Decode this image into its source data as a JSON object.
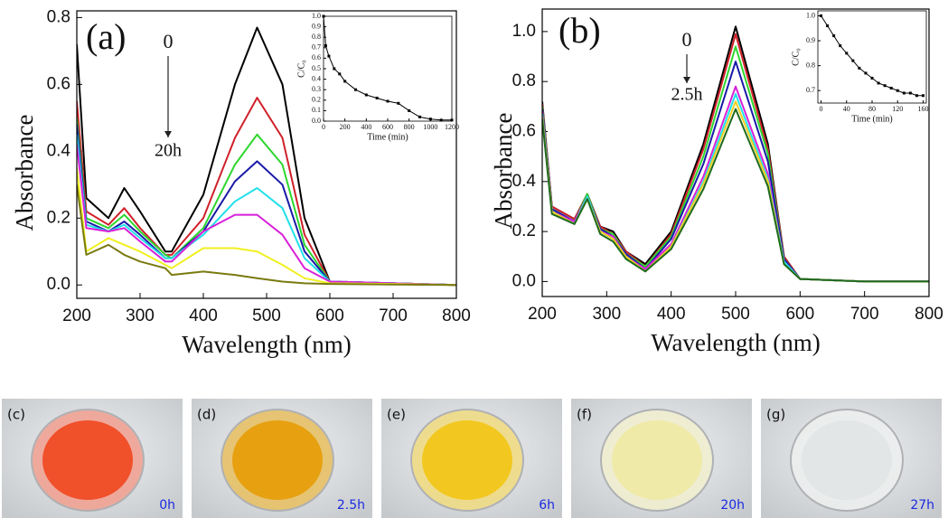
{
  "chart_data": [
    {
      "type": "line",
      "xlabel": "Wavelength (nm)",
      "ylabel": "Absorbance",
      "annotations": [
        "(a)",
        "0",
        "20h"
      ],
      "x": [
        200,
        215,
        250,
        275,
        300,
        340,
        350,
        400,
        450,
        485,
        525,
        560,
        600,
        700,
        800
      ],
      "xlim": [
        200,
        800
      ],
      "xticks": [
        200,
        300,
        400,
        500,
        600,
        700,
        800
      ],
      "ylim": [
        -0.04,
        0.82
      ],
      "yticks": [
        {
          "value": 0,
          "label": "0.0"
        },
        0.2,
        0.4,
        0.6,
        0.8
      ],
      "series": [
        {
          "color": "#000000",
          "values": [
            0.72,
            0.26,
            0.2,
            0.29,
            0.22,
            0.1,
            0.1,
            0.27,
            0.6,
            0.77,
            0.6,
            0.2,
            0.01,
            0.005,
            0
          ]
        },
        {
          "color": "#d0202a",
          "values": [
            0.55,
            0.22,
            0.18,
            0.23,
            0.17,
            0.09,
            0.09,
            0.2,
            0.44,
            0.56,
            0.44,
            0.15,
            0.01,
            0.005,
            0
          ]
        },
        {
          "color": "#2ed62e",
          "values": [
            0.5,
            0.2,
            0.17,
            0.21,
            0.16,
            0.09,
            0.08,
            0.17,
            0.36,
            0.45,
            0.36,
            0.12,
            0.01,
            0.005,
            0
          ]
        },
        {
          "color": "#1a1aa8",
          "values": [
            0.48,
            0.19,
            0.16,
            0.19,
            0.15,
            0.08,
            0.08,
            0.16,
            0.31,
            0.37,
            0.3,
            0.1,
            0.01,
            0.005,
            0
          ]
        },
        {
          "color": "#22e0e8",
          "values": [
            0.45,
            0.18,
            0.16,
            0.18,
            0.14,
            0.08,
            0.08,
            0.15,
            0.25,
            0.29,
            0.23,
            0.08,
            0.01,
            0.005,
            0
          ]
        },
        {
          "color": "#d820d8",
          "values": [
            0.42,
            0.17,
            0.16,
            0.17,
            0.13,
            0.07,
            0.07,
            0.16,
            0.21,
            0.21,
            0.15,
            0.05,
            0.01,
            0.005,
            0
          ]
        },
        {
          "color": "#f0f020",
          "values": [
            0.35,
            0.1,
            0.14,
            0.12,
            0.1,
            0.06,
            0.05,
            0.11,
            0.11,
            0.1,
            0.06,
            0.02,
            0.005,
            0.003,
            0
          ]
        },
        {
          "color": "#7a7a10",
          "values": [
            0.3,
            0.09,
            0.12,
            0.09,
            0.07,
            0.05,
            0.03,
            0.04,
            0.03,
            0.02,
            0.01,
            0.005,
            0.003,
            0.001,
            0
          ]
        }
      ]
    },
    {
      "type": "line",
      "markers": true,
      "xlabel": "Time (min)",
      "ylabel": "C/C₀",
      "x": [
        0,
        20,
        50,
        100,
        150,
        200,
        300,
        400,
        500,
        600,
        700,
        800,
        900,
        1000,
        1100,
        1200
      ],
      "xlim": [
        0,
        1200
      ],
      "xticks": [
        0,
        200,
        400,
        600,
        800,
        1000,
        1200
      ],
      "ylim": [
        0,
        1.0
      ],
      "yticks": [
        {
          "value": 0,
          "label": "0.0"
        },
        0.1,
        0.2,
        0.3,
        0.4,
        0.5,
        0.6,
        0.7,
        0.8,
        0.9,
        {
          "value": 1,
          "label": "1.0"
        }
      ],
      "series": [
        {
          "color": "#000000",
          "values": [
            1.0,
            0.72,
            0.62,
            0.5,
            0.45,
            0.38,
            0.3,
            0.25,
            0.22,
            0.19,
            0.17,
            0.1,
            0.04,
            0.02,
            0.01,
            0.01
          ]
        }
      ]
    },
    {
      "type": "line",
      "xlabel": "Wavelength (nm)",
      "ylabel": "Absorbance",
      "annotations": [
        "(b)",
        "0",
        "2.5h"
      ],
      "x": [
        200,
        215,
        250,
        270,
        290,
        310,
        330,
        360,
        400,
        450,
        500,
        550,
        575,
        600,
        700,
        800
      ],
      "xlim": [
        200,
        800
      ],
      "xticks": [
        200,
        300,
        400,
        500,
        600,
        700,
        800
      ],
      "ylim": [
        -0.06,
        1.09
      ],
      "yticks": [
        {
          "value": 0,
          "label": "0.0"
        },
        0.2,
        0.4,
        0.6,
        0.8,
        {
          "value": 1,
          "label": "1.0"
        }
      ],
      "series": [
        {
          "color": "#000000",
          "values": [
            0.72,
            0.3,
            0.25,
            0.35,
            0.22,
            0.2,
            0.12,
            0.07,
            0.2,
            0.55,
            1.02,
            0.55,
            0.1,
            0.01,
            0,
            0
          ]
        },
        {
          "color": "#d0202a",
          "values": [
            0.71,
            0.3,
            0.25,
            0.35,
            0.22,
            0.19,
            0.12,
            0.06,
            0.19,
            0.53,
            0.99,
            0.53,
            0.1,
            0.01,
            0,
            0
          ]
        },
        {
          "color": "#2ed62e",
          "values": [
            0.7,
            0.29,
            0.24,
            0.35,
            0.21,
            0.19,
            0.11,
            0.06,
            0.18,
            0.5,
            0.94,
            0.51,
            0.09,
            0.01,
            0,
            0
          ]
        },
        {
          "color": "#1a1aa8",
          "values": [
            0.69,
            0.29,
            0.24,
            0.34,
            0.21,
            0.18,
            0.11,
            0.05,
            0.17,
            0.47,
            0.88,
            0.48,
            0.09,
            0.01,
            0,
            0
          ]
        },
        {
          "color": "#d820d8",
          "values": [
            0.68,
            0.28,
            0.24,
            0.34,
            0.2,
            0.18,
            0.1,
            0.05,
            0.15,
            0.42,
            0.78,
            0.43,
            0.08,
            0.01,
            0,
            0
          ]
        },
        {
          "color": "#22e0e8",
          "values": [
            0.67,
            0.28,
            0.23,
            0.34,
            0.2,
            0.17,
            0.1,
            0.04,
            0.14,
            0.4,
            0.75,
            0.41,
            0.08,
            0.01,
            0,
            0
          ]
        },
        {
          "color": "#f0d020",
          "values": [
            0.66,
            0.28,
            0.23,
            0.33,
            0.2,
            0.17,
            0.1,
            0.04,
            0.14,
            0.39,
            0.72,
            0.4,
            0.07,
            0.01,
            0,
            0
          ]
        },
        {
          "color": "#1e6a1e",
          "values": [
            0.65,
            0.27,
            0.23,
            0.33,
            0.19,
            0.16,
            0.09,
            0.04,
            0.13,
            0.37,
            0.69,
            0.38,
            0.07,
            0.01,
            0,
            0
          ]
        }
      ]
    },
    {
      "type": "line",
      "markers": true,
      "xlabel": "Time (min)",
      "ylabel": "C/C₀",
      "x": [
        0,
        10,
        20,
        30,
        40,
        50,
        60,
        70,
        80,
        90,
        100,
        110,
        120,
        130,
        140,
        150,
        160
      ],
      "xlim": [
        -5,
        165
      ],
      "xticks": [
        0,
        40,
        80,
        120,
        160
      ],
      "ylim": [
        0.65,
        1.02
      ],
      "yticks": [
        0.7,
        0.8,
        0.9,
        {
          "value": 1,
          "label": "1.0"
        }
      ],
      "series": [
        {
          "color": "#000000",
          "values": [
            1.0,
            0.96,
            0.92,
            0.88,
            0.85,
            0.82,
            0.79,
            0.77,
            0.75,
            0.73,
            0.72,
            0.71,
            0.7,
            0.69,
            0.69,
            0.68,
            0.68
          ]
        }
      ]
    }
  ],
  "panels": [
    {
      "label": "(c)",
      "time": "0h"
    },
    {
      "label": "(d)",
      "time": "2.5h"
    },
    {
      "label": "(e)",
      "time": "6h"
    },
    {
      "label": "(f)",
      "time": "20h"
    },
    {
      "label": "(g)",
      "time": "27h"
    }
  ]
}
